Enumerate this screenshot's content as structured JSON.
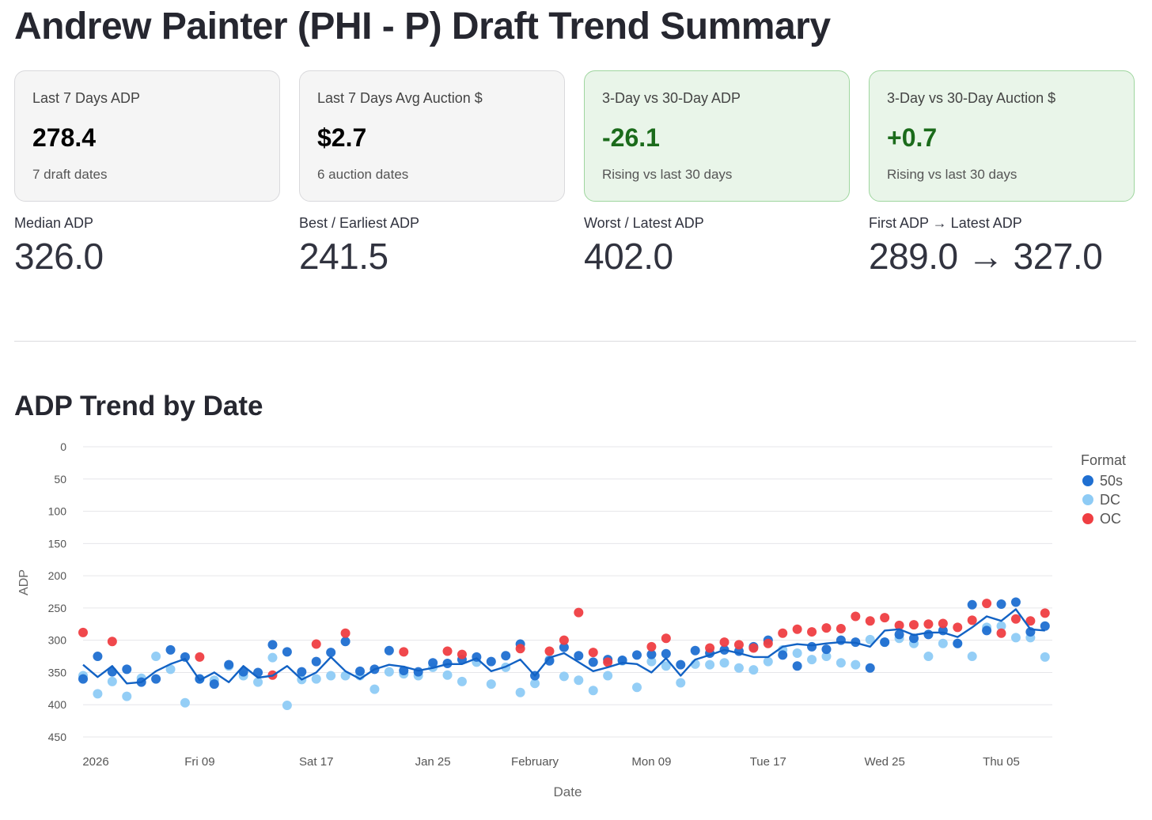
{
  "page": {
    "title": "Andrew Painter (PHI - P) Draft Trend Summary"
  },
  "cards": [
    {
      "label": "Last 7 Days ADP",
      "value": "278.4",
      "sub": "7 draft dates",
      "style": "neutral"
    },
    {
      "label": "Last 7 Days Avg Auction $",
      "value": "$2.7",
      "sub": "6 auction dates",
      "style": "neutral"
    },
    {
      "label": "3-Day vs 30-Day ADP",
      "value": "-26.1",
      "sub": "Rising vs last 30 days",
      "style": "positive"
    },
    {
      "label": "3-Day vs 30-Day Auction $",
      "value": "+0.7",
      "sub": "Rising vs last 30 days",
      "style": "positive"
    }
  ],
  "metrics": [
    {
      "label": "Median ADP",
      "value": "326.0"
    },
    {
      "label": "Best / Earliest ADP",
      "value": "241.5"
    },
    {
      "label": "Worst / Latest ADP",
      "value": "402.0"
    },
    {
      "label": "First ADP → Latest ADP",
      "value": "289.0 → 327.0"
    }
  ],
  "section": {
    "title": "ADP Trend by Date"
  },
  "colors": {
    "50s": "#1f6fd1",
    "DC": "#8ecbf5",
    "OC": "#ef3e42",
    "trend": "#1262c4",
    "positive_text": "#1b6b1b"
  },
  "chart_data": {
    "type": "scatter",
    "xlabel": "Date",
    "ylabel": "ADP",
    "ylim": [
      0,
      450
    ],
    "y_reversed": true,
    "yticks": [
      0,
      50,
      100,
      150,
      200,
      250,
      300,
      350,
      400,
      450
    ],
    "x_start": "2026-01-01",
    "x_end": "2026-03-09",
    "xticks": [
      {
        "label": "2026",
        "day": 0
      },
      {
        "label": "Fri 09",
        "day": 8
      },
      {
        "label": "Sat 17",
        "day": 16
      },
      {
        "label": "Jan 25",
        "day": 24
      },
      {
        "label": "February",
        "day": 31
      },
      {
        "label": "Mon 09",
        "day": 39
      },
      {
        "label": "Tue 17",
        "day": 47
      },
      {
        "label": "Wed 25",
        "day": 55
      },
      {
        "label": "Thu 05",
        "day": 63
      }
    ],
    "legend": {
      "title": "Format",
      "position": "top-right",
      "entries": [
        "50s",
        "DC",
        "OC"
      ]
    },
    "series": [
      {
        "name": "50s",
        "points": [
          [
            0,
            360
          ],
          [
            1,
            325
          ],
          [
            2,
            349
          ],
          [
            3,
            345
          ],
          [
            4,
            365
          ],
          [
            5,
            360
          ],
          [
            6,
            315
          ],
          [
            7,
            326
          ],
          [
            8,
            360
          ],
          [
            9,
            368
          ],
          [
            10,
            338
          ],
          [
            11,
            349
          ],
          [
            12,
            350
          ],
          [
            13,
            307
          ],
          [
            14,
            318
          ],
          [
            15,
            349
          ],
          [
            16,
            333
          ],
          [
            17,
            319
          ],
          [
            18,
            302
          ],
          [
            19,
            348
          ],
          [
            20,
            345
          ],
          [
            21,
            316
          ],
          [
            22,
            347
          ],
          [
            23,
            349
          ],
          [
            24,
            335
          ],
          [
            25,
            336
          ],
          [
            26,
            330
          ],
          [
            27,
            326
          ],
          [
            28,
            333
          ],
          [
            29,
            324
          ],
          [
            30,
            306
          ],
          [
            31,
            355
          ],
          [
            32,
            332
          ],
          [
            33,
            311
          ],
          [
            34,
            324
          ],
          [
            35,
            334
          ],
          [
            36,
            330
          ],
          [
            37,
            331
          ],
          [
            38,
            323
          ],
          [
            39,
            322
          ],
          [
            40,
            321
          ],
          [
            41,
            338
          ],
          [
            42,
            316
          ],
          [
            43,
            320
          ],
          [
            44,
            315
          ],
          [
            45,
            317
          ],
          [
            46,
            310
          ],
          [
            47,
            300
          ],
          [
            48,
            323
          ],
          [
            49,
            340
          ],
          [
            50,
            310
          ],
          [
            51,
            314
          ],
          [
            52,
            300
          ],
          [
            53,
            303
          ],
          [
            54,
            343
          ],
          [
            55,
            303
          ],
          [
            56,
            291
          ],
          [
            57,
            297
          ],
          [
            58,
            291
          ],
          [
            59,
            285
          ],
          [
            60,
            305
          ],
          [
            61,
            245
          ],
          [
            62,
            285
          ],
          [
            63,
            244
          ],
          [
            64,
            241
          ],
          [
            65,
            287
          ],
          [
            66,
            278
          ]
        ]
      },
      {
        "name": "DC",
        "points": [
          [
            0,
            355
          ],
          [
            1,
            383
          ],
          [
            2,
            364
          ],
          [
            3,
            387
          ],
          [
            4,
            359
          ],
          [
            5,
            325
          ],
          [
            6,
            345
          ],
          [
            7,
            397
          ],
          [
            8,
            360
          ],
          [
            9,
            362
          ],
          [
            10,
            340
          ],
          [
            11,
            355
          ],
          [
            12,
            365
          ],
          [
            13,
            327
          ],
          [
            14,
            401
          ],
          [
            15,
            361
          ],
          [
            16,
            360
          ],
          [
            17,
            355
          ],
          [
            18,
            355
          ],
          [
            19,
            355
          ],
          [
            20,
            376
          ],
          [
            21,
            349
          ],
          [
            22,
            352
          ],
          [
            23,
            355
          ],
          [
            24,
            342
          ],
          [
            25,
            354
          ],
          [
            26,
            364
          ],
          [
            27,
            334
          ],
          [
            28,
            368
          ],
          [
            29,
            342
          ],
          [
            30,
            381
          ],
          [
            31,
            367
          ],
          [
            32,
            330
          ],
          [
            33,
            356
          ],
          [
            34,
            362
          ],
          [
            35,
            378
          ],
          [
            36,
            355
          ],
          [
            37,
            332
          ],
          [
            38,
            373
          ],
          [
            39,
            333
          ],
          [
            40,
            340
          ],
          [
            41,
            366
          ],
          [
            42,
            337
          ],
          [
            43,
            338
          ],
          [
            44,
            335
          ],
          [
            45,
            343
          ],
          [
            46,
            346
          ],
          [
            47,
            333
          ],
          [
            48,
            315
          ],
          [
            49,
            320
          ],
          [
            50,
            330
          ],
          [
            51,
            325
          ],
          [
            52,
            335
          ],
          [
            53,
            338
          ],
          [
            54,
            299
          ],
          [
            55,
            303
          ],
          [
            56,
            297
          ],
          [
            57,
            305
          ],
          [
            58,
            325
          ],
          [
            59,
            305
          ],
          [
            60,
            305
          ],
          [
            61,
            325
          ],
          [
            62,
            280
          ],
          [
            63,
            278
          ],
          [
            64,
            296
          ],
          [
            65,
            296
          ],
          [
            66,
            326
          ]
        ]
      },
      {
        "name": "OC",
        "points": [
          [
            0,
            288
          ],
          [
            2,
            302
          ],
          [
            8,
            326
          ],
          [
            13,
            354
          ],
          [
            16,
            306
          ],
          [
            18,
            289
          ],
          [
            22,
            318
          ],
          [
            25,
            317
          ],
          [
            26,
            322
          ],
          [
            30,
            313
          ],
          [
            32,
            317
          ],
          [
            33,
            300
          ],
          [
            34,
            257
          ],
          [
            35,
            319
          ],
          [
            36,
            334
          ],
          [
            39,
            310
          ],
          [
            40,
            297
          ],
          [
            43,
            312
          ],
          [
            44,
            303
          ],
          [
            45,
            307
          ],
          [
            46,
            312
          ],
          [
            47,
            305
          ],
          [
            48,
            289
          ],
          [
            49,
            283
          ],
          [
            50,
            287
          ],
          [
            51,
            281
          ],
          [
            52,
            282
          ],
          [
            53,
            263
          ],
          [
            54,
            270
          ],
          [
            55,
            265
          ],
          [
            56,
            277
          ],
          [
            57,
            276
          ],
          [
            58,
            275
          ],
          [
            59,
            274
          ],
          [
            60,
            280
          ],
          [
            61,
            269
          ],
          [
            62,
            243
          ],
          [
            63,
            289
          ],
          [
            64,
            267
          ],
          [
            65,
            270
          ],
          [
            66,
            258
          ]
        ]
      },
      {
        "name": "trend",
        "points": [
          [
            0,
            338
          ],
          [
            1,
            357
          ],
          [
            2,
            340
          ],
          [
            3,
            367
          ],
          [
            4,
            365
          ],
          [
            5,
            348
          ],
          [
            6,
            337
          ],
          [
            7,
            329
          ],
          [
            8,
            362
          ],
          [
            9,
            350
          ],
          [
            10,
            365
          ],
          [
            11,
            340
          ],
          [
            12,
            358
          ],
          [
            13,
            355
          ],
          [
            14,
            340
          ],
          [
            15,
            361
          ],
          [
            16,
            350
          ],
          [
            17,
            326
          ],
          [
            18,
            348
          ],
          [
            19,
            360
          ],
          [
            20,
            345
          ],
          [
            21,
            338
          ],
          [
            22,
            341
          ],
          [
            23,
            347
          ],
          [
            24,
            343
          ],
          [
            25,
            337
          ],
          [
            26,
            337
          ],
          [
            27,
            328
          ],
          [
            28,
            348
          ],
          [
            29,
            341
          ],
          [
            30,
            330
          ],
          [
            31,
            355
          ],
          [
            32,
            327
          ],
          [
            33,
            320
          ],
          [
            34,
            334
          ],
          [
            35,
            348
          ],
          [
            36,
            342
          ],
          [
            37,
            335
          ],
          [
            38,
            337
          ],
          [
            39,
            350
          ],
          [
            40,
            328
          ],
          [
            41,
            355
          ],
          [
            42,
            330
          ],
          [
            43,
            323
          ],
          [
            44,
            315
          ],
          [
            45,
            320
          ],
          [
            46,
            326
          ],
          [
            47,
            326
          ],
          [
            48,
            310
          ],
          [
            49,
            306
          ],
          [
            50,
            308
          ],
          [
            51,
            305
          ],
          [
            52,
            303
          ],
          [
            53,
            304
          ],
          [
            54,
            310
          ],
          [
            55,
            285
          ],
          [
            56,
            283
          ],
          [
            57,
            292
          ],
          [
            58,
            288
          ],
          [
            59,
            288
          ],
          [
            60,
            295
          ],
          [
            61,
            280
          ],
          [
            62,
            263
          ],
          [
            63,
            270
          ],
          [
            64,
            252
          ],
          [
            65,
            283
          ],
          [
            66,
            285
          ]
        ]
      }
    ]
  }
}
